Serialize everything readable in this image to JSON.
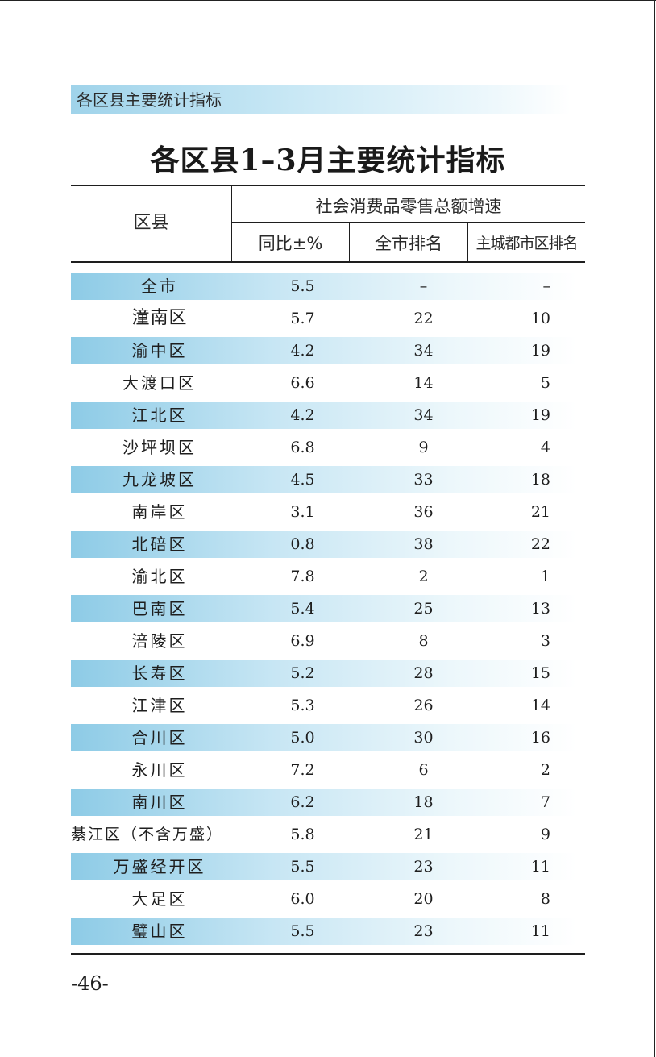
{
  "header": {
    "section_label": "各区县主要统计指标",
    "title": "各区县1–3月主要统计指标"
  },
  "table": {
    "col_district": "区县",
    "group_header": "社会消费品零售总额增速",
    "col_yoy": "同比±%",
    "col_city_rank": "全市排名",
    "col_main_rank": "主城都市区排名",
    "rows": [
      {
        "name": "全市",
        "yoy": "5.5",
        "city_rank": "–",
        "main_rank": "–"
      },
      {
        "name": "潼南区",
        "yoy": "5.7",
        "city_rank": "22",
        "main_rank": "10"
      },
      {
        "name": "渝中区",
        "yoy": "4.2",
        "city_rank": "34",
        "main_rank": "19"
      },
      {
        "name": "大渡口区",
        "yoy": "6.6",
        "city_rank": "14",
        "main_rank": "5"
      },
      {
        "name": "江北区",
        "yoy": "4.2",
        "city_rank": "34",
        "main_rank": "19"
      },
      {
        "name": "沙坪坝区",
        "yoy": "6.8",
        "city_rank": "9",
        "main_rank": "4"
      },
      {
        "name": "九龙坡区",
        "yoy": "4.5",
        "city_rank": "33",
        "main_rank": "18"
      },
      {
        "name": "南岸区",
        "yoy": "3.1",
        "city_rank": "36",
        "main_rank": "21"
      },
      {
        "name": "北碚区",
        "yoy": "0.8",
        "city_rank": "38",
        "main_rank": "22"
      },
      {
        "name": "渝北区",
        "yoy": "7.8",
        "city_rank": "2",
        "main_rank": "1"
      },
      {
        "name": "巴南区",
        "yoy": "5.4",
        "city_rank": "25",
        "main_rank": "13"
      },
      {
        "name": "涪陵区",
        "yoy": "6.9",
        "city_rank": "8",
        "main_rank": "3"
      },
      {
        "name": "长寿区",
        "yoy": "5.2",
        "city_rank": "28",
        "main_rank": "15"
      },
      {
        "name": "江津区",
        "yoy": "5.3",
        "city_rank": "26",
        "main_rank": "14"
      },
      {
        "name": "合川区",
        "yoy": "5.0",
        "city_rank": "30",
        "main_rank": "16"
      },
      {
        "name": "永川区",
        "yoy": "7.2",
        "city_rank": "6",
        "main_rank": "2"
      },
      {
        "name": "南川区",
        "yoy": "6.2",
        "city_rank": "18",
        "main_rank": "7"
      },
      {
        "name": "綦江区（不含万盛）",
        "yoy": "5.8",
        "city_rank": "21",
        "main_rank": "9"
      },
      {
        "name": "万盛经开区",
        "yoy": "5.5",
        "city_rank": "23",
        "main_rank": "11"
      },
      {
        "name": "大足区",
        "yoy": "6.0",
        "city_rank": "20",
        "main_rank": "8"
      },
      {
        "name": "璧山区",
        "yoy": "5.5",
        "city_rank": "23",
        "main_rank": "11"
      }
    ]
  },
  "footer": {
    "page_number": "-46-"
  }
}
